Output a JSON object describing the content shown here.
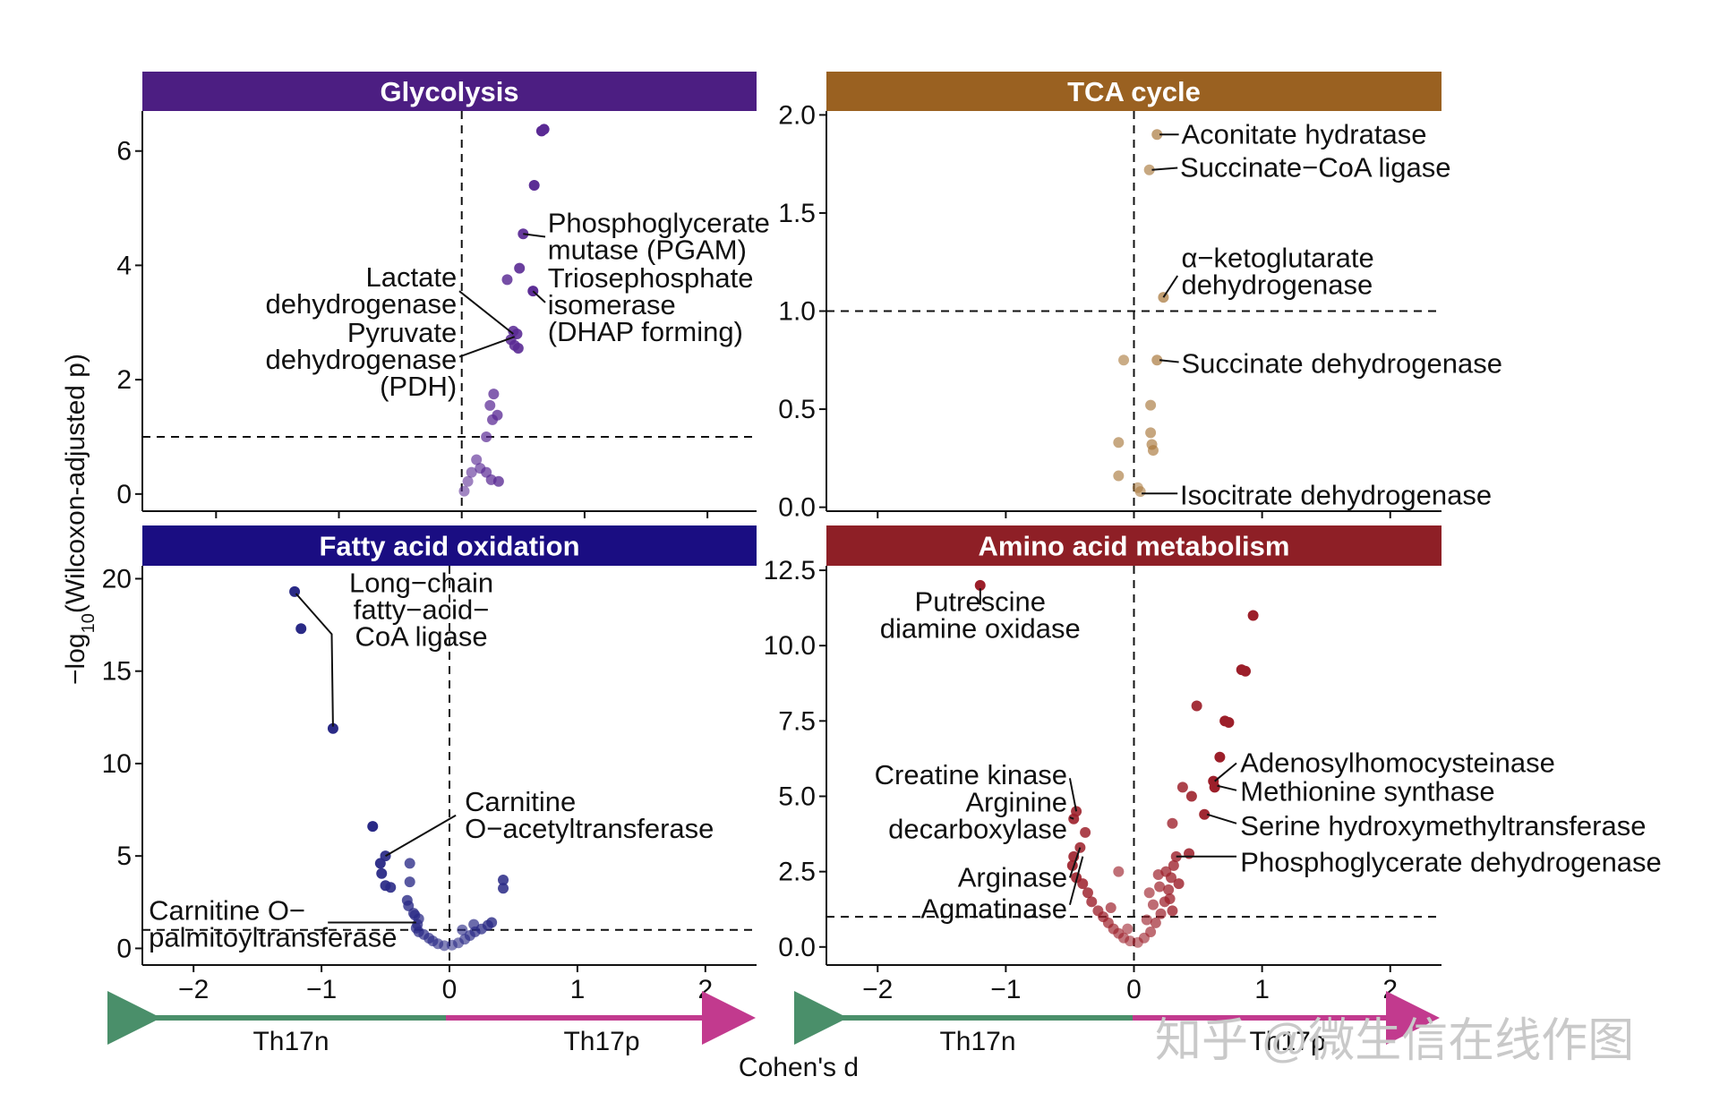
{
  "figure": {
    "ylabel_prefix": "−log",
    "ylabel_sub": "10",
    "ylabel_suffix": "(Wilcoxon-adjusted p)",
    "xlabel": "Cohen's d",
    "left_dir_label": "Th17n",
    "right_dir_label": "Th17p",
    "left_dir_color": "#4a8f6a",
    "right_dir_color": "#c23a8e",
    "watermark": "知乎 @微生信在线作图"
  },
  "chart_data": [
    {
      "type": "scatter",
      "title": "Glycolysis",
      "strip_color": "#4c1e82",
      "point_color": "#5a2a94",
      "xlim": [
        -2.6,
        2.4
      ],
      "ylim": [
        -0.3,
        6.7
      ],
      "xticks": [
        -2,
        -1,
        0,
        1,
        2
      ],
      "xtick_labels": [
        "−2",
        "−1",
        "0",
        "1",
        "2"
      ],
      "yticks": [
        0,
        2,
        4,
        6
      ],
      "ytick_labels": [
        "0",
        "2",
        "4",
        "6"
      ],
      "hline": 1,
      "vline": 0,
      "points": [
        {
          "x": 0.65,
          "y": 6.35
        },
        {
          "x": 0.67,
          "y": 6.38
        },
        {
          "x": 0.59,
          "y": 5.4
        },
        {
          "x": 0.5,
          "y": 4.55
        },
        {
          "x": 0.47,
          "y": 3.95
        },
        {
          "x": 0.37,
          "y": 3.75
        },
        {
          "x": 0.58,
          "y": 3.55
        },
        {
          "x": 0.42,
          "y": 2.85
        },
        {
          "x": 0.45,
          "y": 2.8
        },
        {
          "x": 0.4,
          "y": 2.7
        },
        {
          "x": 0.43,
          "y": 2.6
        },
        {
          "x": 0.46,
          "y": 2.55
        },
        {
          "x": 0.26,
          "y": 1.75
        },
        {
          "x": 0.23,
          "y": 1.55
        },
        {
          "x": 0.29,
          "y": 1.38
        },
        {
          "x": 0.25,
          "y": 1.3
        },
        {
          "x": 0.2,
          "y": 1.0
        },
        {
          "x": 0.12,
          "y": 0.6
        },
        {
          "x": 0.15,
          "y": 0.45
        },
        {
          "x": 0.08,
          "y": 0.38
        },
        {
          "x": 0.2,
          "y": 0.38
        },
        {
          "x": 0.05,
          "y": 0.22
        },
        {
          "x": 0.24,
          "y": 0.25
        },
        {
          "x": 0.3,
          "y": 0.22
        },
        {
          "x": 0.02,
          "y": 0.05
        }
      ],
      "annotations": [
        {
          "lines": [
            "Phosphoglycerate",
            "mutase (PGAM)"
          ],
          "x": 0.7,
          "y": 4.5,
          "anchor": "start",
          "leader": [
            [
              0.5,
              4.55
            ],
            [
              0.68,
              4.5
            ]
          ]
        },
        {
          "lines": [
            "Triosephosphate",
            "isomerase",
            "(DHAP forming)"
          ],
          "x": 0.7,
          "y": 3.3,
          "anchor": "start",
          "leader": [
            [
              0.58,
              3.55
            ],
            [
              0.68,
              3.35
            ]
          ]
        },
        {
          "lines": [
            "Lactate",
            "dehydrogenase"
          ],
          "x": -0.04,
          "y": 3.55,
          "anchor": "end",
          "leader": [
            [
              -0.02,
              3.55
            ],
            [
              0.42,
              2.8
            ]
          ]
        },
        {
          "lines": [
            "Pyruvate",
            "dehydrogenase",
            "(PDH)"
          ],
          "x": -0.04,
          "y": 2.35,
          "anchor": "end",
          "leader": [
            [
              -0.02,
              2.4
            ],
            [
              0.43,
              2.75
            ]
          ]
        }
      ]
    },
    {
      "type": "scatter",
      "title": "TCA cycle",
      "strip_color": "#9a6121",
      "point_color": "#a8773a",
      "xlim": [
        -2.4,
        2.4
      ],
      "ylim": [
        -0.02,
        2.02
      ],
      "xticks": [
        -2,
        -1,
        0,
        1,
        2
      ],
      "xtick_labels": [
        "−2",
        "−1",
        "0",
        "1",
        "2"
      ],
      "yticks": [
        0,
        0.5,
        1,
        1.5,
        2
      ],
      "ytick_labels": [
        "0.0",
        "0.5",
        "1.0",
        "1.5",
        "2.0"
      ],
      "hline": 1,
      "vline": 0,
      "points": [
        {
          "x": 0.18,
          "y": 1.9
        },
        {
          "x": 0.12,
          "y": 1.72
        },
        {
          "x": 0.23,
          "y": 1.07
        },
        {
          "x": -0.08,
          "y": 0.75
        },
        {
          "x": 0.18,
          "y": 0.75
        },
        {
          "x": 0.13,
          "y": 0.52
        },
        {
          "x": 0.13,
          "y": 0.38
        },
        {
          "x": 0.14,
          "y": 0.32
        },
        {
          "x": 0.15,
          "y": 0.29
        },
        {
          "x": -0.12,
          "y": 0.33
        },
        {
          "x": -0.12,
          "y": 0.16
        },
        {
          "x": 0.03,
          "y": 0.1
        },
        {
          "x": 0.05,
          "y": 0.08
        }
      ],
      "annotations": [
        {
          "lines": [
            "Aconitate hydratase"
          ],
          "x": 0.37,
          "y": 1.9,
          "anchor": "start",
          "leader": [
            [
              0.2,
              1.9
            ],
            [
              0.35,
              1.9
            ]
          ]
        },
        {
          "lines": [
            "Succinate−CoA ligase"
          ],
          "x": 0.36,
          "y": 1.73,
          "anchor": "start",
          "leader": [
            [
              0.14,
              1.72
            ],
            [
              0.34,
              1.73
            ]
          ]
        },
        {
          "lines": [
            "α−ketoglutarate",
            "dehydrogenase"
          ],
          "x": 0.37,
          "y": 1.2,
          "anchor": "start",
          "leader": [
            [
              0.23,
              1.07
            ],
            [
              0.34,
              1.18
            ]
          ]
        },
        {
          "lines": [
            "Succinate dehydrogenase"
          ],
          "x": 0.37,
          "y": 0.73,
          "anchor": "start",
          "leader": [
            [
              0.2,
              0.75
            ],
            [
              0.35,
              0.74
            ]
          ]
        },
        {
          "lines": [
            "Isocitrate dehydrogenase"
          ],
          "x": 0.36,
          "y": 0.06,
          "anchor": "start",
          "leader": [
            [
              0.06,
              0.07
            ],
            [
              0.34,
              0.07
            ]
          ]
        }
      ]
    },
    {
      "type": "scatter",
      "title": "Fatty acid oxidation",
      "strip_color": "#1a0d82",
      "point_color": "#2a2a86",
      "xlim": [
        -2.4,
        2.4
      ],
      "ylim": [
        -0.9,
        20.7
      ],
      "xticks": [
        -2,
        -1,
        0,
        1,
        2
      ],
      "xtick_labels": [
        "−2",
        "−1",
        "0",
        "1",
        "2"
      ],
      "yticks": [
        0,
        5,
        10,
        15,
        20
      ],
      "ytick_labels": [
        "0",
        "5",
        "10",
        "15",
        "20"
      ],
      "hline": 1,
      "vline": 0,
      "points": [
        {
          "x": -1.21,
          "y": 19.3
        },
        {
          "x": -1.16,
          "y": 17.3
        },
        {
          "x": -0.91,
          "y": 11.9
        },
        {
          "x": -0.6,
          "y": 6.6
        },
        {
          "x": -0.5,
          "y": 5.0
        },
        {
          "x": -0.54,
          "y": 4.6
        },
        {
          "x": -0.31,
          "y": 4.6
        },
        {
          "x": -0.53,
          "y": 4.05
        },
        {
          "x": -0.31,
          "y": 3.6
        },
        {
          "x": -0.5,
          "y": 3.4
        },
        {
          "x": -0.46,
          "y": 3.3
        },
        {
          "x": 0.42,
          "y": 3.7
        },
        {
          "x": 0.42,
          "y": 3.25
        },
        {
          "x": -0.33,
          "y": 2.6
        },
        {
          "x": -0.32,
          "y": 2.3
        },
        {
          "x": -0.27,
          "y": 1.8
        },
        {
          "x": -0.24,
          "y": 1.6
        },
        {
          "x": -0.25,
          "y": 1.3
        },
        {
          "x": -0.26,
          "y": 1.1
        },
        {
          "x": -0.24,
          "y": 0.9
        },
        {
          "x": -0.2,
          "y": 0.75
        },
        {
          "x": -0.16,
          "y": 0.55
        },
        {
          "x": -0.13,
          "y": 0.4
        },
        {
          "x": -0.09,
          "y": 0.25
        },
        {
          "x": -0.04,
          "y": 0.15
        },
        {
          "x": 0.02,
          "y": 0.18
        },
        {
          "x": 0.07,
          "y": 0.3
        },
        {
          "x": 0.12,
          "y": 0.5
        },
        {
          "x": 0.16,
          "y": 0.7
        },
        {
          "x": 0.2,
          "y": 0.9
        },
        {
          "x": 0.25,
          "y": 1.05
        },
        {
          "x": 0.3,
          "y": 1.25
        },
        {
          "x": 0.33,
          "y": 1.4
        },
        {
          "x": 0.19,
          "y": 1.3
        },
        {
          "x": 0.1,
          "y": 1.0
        },
        {
          "x": -0.28,
          "y": 1.9
        }
      ],
      "annotations": [
        {
          "lines": [
            "Long−chain",
            "fatty−acid−",
            "CoA ligase"
          ],
          "x": -0.22,
          "y": 18.3,
          "anchor": "middle",
          "leader": [
            [
              -1.2,
              19.2
            ],
            [
              -0.92,
              17.0
            ],
            [
              -0.91,
              12.0
            ]
          ]
        },
        {
          "lines": [
            "Carnitine",
            "O−acetyltransferase"
          ],
          "x": 0.12,
          "y": 7.2,
          "anchor": "start",
          "leader": [
            [
              -0.5,
              5.0
            ],
            [
              0.05,
              7.2
            ]
          ]
        },
        {
          "lines": [
            "Carnitine O−",
            "palmitoyltransferase"
          ],
          "x": -2.35,
          "y": 1.3,
          "anchor": "start",
          "leader": [
            [
              -0.95,
              1.4
            ],
            [
              -0.26,
              1.4
            ]
          ]
        }
      ]
    },
    {
      "type": "scatter",
      "title": "Amino acid metabolism",
      "strip_color": "#8e1f26",
      "point_color": "#9c1f2a",
      "xlim": [
        -2.4,
        2.4
      ],
      "ylim": [
        -0.6,
        12.65
      ],
      "xticks": [
        -2,
        -1,
        0,
        1,
        2
      ],
      "xtick_labels": [
        "−2",
        "−1",
        "0",
        "1",
        "2"
      ],
      "yticks": [
        0,
        2.5,
        5,
        7.5,
        10,
        12.5
      ],
      "ytick_labels": [
        "0.0",
        "2.5",
        "5.0",
        "7.5",
        "10.0",
        "12.5"
      ],
      "hline": 1,
      "vline": 0,
      "points": [
        {
          "x": -1.2,
          "y": 12.0
        },
        {
          "x": 0.93,
          "y": 11.0
        },
        {
          "x": 0.84,
          "y": 9.2
        },
        {
          "x": 0.87,
          "y": 9.15
        },
        {
          "x": 0.49,
          "y": 8.0
        },
        {
          "x": 0.71,
          "y": 7.5
        },
        {
          "x": 0.74,
          "y": 7.45
        },
        {
          "x": 0.67,
          "y": 6.3
        },
        {
          "x": 0.62,
          "y": 5.5
        },
        {
          "x": 0.63,
          "y": 5.3
        },
        {
          "x": 0.45,
          "y": 5.0
        },
        {
          "x": 0.38,
          "y": 5.3
        },
        {
          "x": 0.55,
          "y": 4.4
        },
        {
          "x": 0.3,
          "y": 4.1
        },
        {
          "x": 0.43,
          "y": 3.1
        },
        {
          "x": -0.45,
          "y": 4.5
        },
        {
          "x": -0.47,
          "y": 4.25
        },
        {
          "x": -0.38,
          "y": 3.8
        },
        {
          "x": -0.42,
          "y": 3.3
        },
        {
          "x": -0.47,
          "y": 3.0
        },
        {
          "x": -0.48,
          "y": 2.7
        },
        {
          "x": -0.12,
          "y": 2.5
        },
        {
          "x": -0.45,
          "y": 2.3
        },
        {
          "x": -0.4,
          "y": 2.1
        },
        {
          "x": -0.36,
          "y": 1.8
        },
        {
          "x": -0.33,
          "y": 1.5
        },
        {
          "x": -0.28,
          "y": 1.2
        },
        {
          "x": -0.24,
          "y": 1.0
        },
        {
          "x": -0.2,
          "y": 0.8
        },
        {
          "x": -0.16,
          "y": 0.6
        },
        {
          "x": -0.12,
          "y": 0.45
        },
        {
          "x": -0.08,
          "y": 0.3
        },
        {
          "x": -0.03,
          "y": 0.2
        },
        {
          "x": 0.03,
          "y": 0.15
        },
        {
          "x": 0.08,
          "y": 0.3
        },
        {
          "x": 0.13,
          "y": 0.5
        },
        {
          "x": 0.17,
          "y": 0.8
        },
        {
          "x": 0.21,
          "y": 1.1
        },
        {
          "x": 0.24,
          "y": 1.5
        },
        {
          "x": 0.27,
          "y": 1.9
        },
        {
          "x": 0.29,
          "y": 2.3
        },
        {
          "x": 0.31,
          "y": 2.7
        },
        {
          "x": 0.33,
          "y": 3.0
        },
        {
          "x": 0.25,
          "y": 2.5
        },
        {
          "x": 0.2,
          "y": 2.0
        },
        {
          "x": 0.15,
          "y": 1.4
        },
        {
          "x": 0.1,
          "y": 0.9
        },
        {
          "x": -0.05,
          "y": 0.6
        },
        {
          "x": -0.18,
          "y": 1.3
        },
        {
          "x": 0.3,
          "y": 1.2
        },
        {
          "x": 0.35,
          "y": 2.1
        },
        {
          "x": 0.28,
          "y": 1.6
        },
        {
          "x": 0.19,
          "y": 2.4
        },
        {
          "x": 0.12,
          "y": 1.8
        }
      ],
      "annotations": [
        {
          "lines": [
            "Putrescine",
            "diamine oxidase"
          ],
          "x": -1.2,
          "y": 11.0,
          "anchor": "middle",
          "leader": [
            [
              -1.2,
              11.9
            ],
            [
              -1.2,
              11.35
            ]
          ]
        },
        {
          "lines": [
            "Creatine kinase"
          ],
          "x": -0.52,
          "y": 5.7,
          "anchor": "end",
          "leader": [
            [
              -0.5,
              5.6
            ],
            [
              -0.45,
              4.5
            ]
          ]
        },
        {
          "lines": [
            "Arginine",
            "decarboxylase"
          ],
          "x": -0.52,
          "y": 4.35,
          "anchor": "end",
          "leader": [
            [
              -0.5,
              4.3
            ],
            [
              -0.47,
              4.25
            ]
          ]
        },
        {
          "lines": [
            "Arginase"
          ],
          "x": -0.52,
          "y": 2.3,
          "anchor": "end",
          "leader": [
            [
              -0.5,
              2.3
            ],
            [
              -0.42,
              3.3
            ]
          ]
        },
        {
          "lines": [
            "Agmatinase"
          ],
          "x": -0.52,
          "y": 1.25,
          "anchor": "end",
          "leader": [
            [
              -0.5,
              1.4
            ],
            [
              -0.4,
              3.0
            ]
          ]
        },
        {
          "lines": [
            "Adenosylhomocysteinase"
          ],
          "x": 0.83,
          "y": 6.1,
          "anchor": "start",
          "leader": [
            [
              0.63,
              5.5
            ],
            [
              0.8,
              6.1
            ]
          ]
        },
        {
          "lines": [
            "Methionine synthase"
          ],
          "x": 0.83,
          "y": 5.15,
          "anchor": "start",
          "leader": [
            [
              0.65,
              5.35
            ],
            [
              0.8,
              5.2
            ]
          ]
        },
        {
          "lines": [
            "Serine hydroxymethyltransferase"
          ],
          "x": 0.83,
          "y": 4.0,
          "anchor": "start",
          "leader": [
            [
              0.57,
              4.4
            ],
            [
              0.8,
              4.1
            ]
          ]
        },
        {
          "lines": [
            "Phosphoglycerate dehydrogenase"
          ],
          "x": 0.83,
          "y": 2.8,
          "anchor": "start",
          "leader": [
            [
              0.33,
              3.0
            ],
            [
              0.8,
              3.0
            ]
          ]
        }
      ]
    }
  ]
}
